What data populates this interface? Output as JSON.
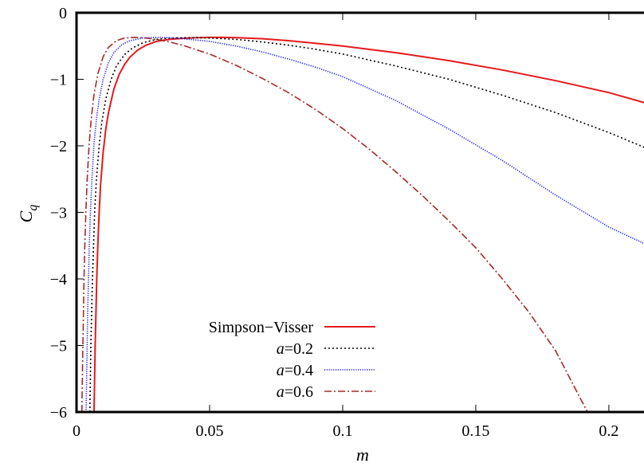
{
  "chart_data": {
    "type": "line",
    "title": "",
    "xlabel": "m",
    "ylabel": "C",
    "ylabel_sub": "q",
    "xlim": [
      0,
      0.215
    ],
    "ylim": [
      -6,
      0
    ],
    "xticks": [
      {
        "value": 0,
        "label": "0"
      },
      {
        "value": 0.05,
        "label": "0.05"
      },
      {
        "value": 0.1,
        "label": "0.1"
      },
      {
        "value": 0.15,
        "label": "0.15"
      },
      {
        "value": 0.2,
        "label": "0.2"
      }
    ],
    "yticks": [
      {
        "value": 0,
        "label": "0"
      },
      {
        "value": -1,
        "label": "−1"
      },
      {
        "value": -2,
        "label": "−2"
      },
      {
        "value": -3,
        "label": "−3"
      },
      {
        "value": -4,
        "label": "−4"
      },
      {
        "value": -5,
        "label": "−5"
      },
      {
        "value": -6,
        "label": "−6"
      }
    ],
    "grid": false,
    "legend": "bottom-left",
    "series": [
      {
        "name": "Simpson−Visser",
        "legend_prefix": "",
        "legend_value": "Simpson−Visser",
        "color": "#e41a1c",
        "dash": "solid",
        "x": [
          0.0066,
          0.0068,
          0.007,
          0.0073,
          0.0076,
          0.008,
          0.0085,
          0.009,
          0.01,
          0.011,
          0.012,
          0.014,
          0.016,
          0.018,
          0.02,
          0.023,
          0.026,
          0.03,
          0.035,
          0.04,
          0.045,
          0.05,
          0.055,
          0.06,
          0.07,
          0.08,
          0.09,
          0.1,
          0.12,
          0.14,
          0.16,
          0.18,
          0.2,
          0.215
        ],
        "y": [
          -6.0,
          -5.5,
          -5.0,
          -4.5,
          -4.0,
          -3.5,
          -3.0,
          -2.6,
          -2.1,
          -1.75,
          -1.5,
          -1.15,
          -0.93,
          -0.78,
          -0.67,
          -0.56,
          -0.49,
          -0.43,
          -0.4,
          -0.385,
          -0.375,
          -0.37,
          -0.37,
          -0.375,
          -0.39,
          -0.42,
          -0.46,
          -0.5,
          -0.6,
          -0.72,
          -0.86,
          -1.02,
          -1.2,
          -1.37
        ]
      },
      {
        "name": "a=0.2",
        "legend_prefix": "a",
        "legend_value": "=0.2",
        "color": "#000000",
        "dash": "dotted",
        "x": [
          0.005,
          0.0052,
          0.0054,
          0.0057,
          0.006,
          0.0064,
          0.0068,
          0.0075,
          0.0085,
          0.0095,
          0.011,
          0.013,
          0.015,
          0.018,
          0.021,
          0.025,
          0.03,
          0.035,
          0.04,
          0.045,
          0.05,
          0.06,
          0.07,
          0.08,
          0.09,
          0.1,
          0.12,
          0.14,
          0.16,
          0.18,
          0.2,
          0.215
        ],
        "y": [
          -6.0,
          -5.5,
          -5.0,
          -4.5,
          -4.0,
          -3.5,
          -3.0,
          -2.5,
          -2.0,
          -1.65,
          -1.3,
          -1.0,
          -0.8,
          -0.63,
          -0.53,
          -0.45,
          -0.4,
          -0.38,
          -0.375,
          -0.375,
          -0.38,
          -0.4,
          -0.44,
          -0.49,
          -0.55,
          -0.62,
          -0.8,
          -1.0,
          -1.24,
          -1.5,
          -1.8,
          -2.05
        ]
      },
      {
        "name": "a=0.4",
        "legend_prefix": "a",
        "legend_value": "=0.4",
        "color": "#1a1aff",
        "dash": "fine-dotted",
        "x": [
          0.0036,
          0.0038,
          0.004,
          0.0042,
          0.0045,
          0.0048,
          0.0052,
          0.0058,
          0.0065,
          0.0075,
          0.0085,
          0.01,
          0.012,
          0.014,
          0.017,
          0.02,
          0.025,
          0.03,
          0.035,
          0.04,
          0.05,
          0.06,
          0.07,
          0.08,
          0.09,
          0.1,
          0.12,
          0.14,
          0.16,
          0.18,
          0.2,
          0.215
        ],
        "y": [
          -6.0,
          -5.5,
          -5.0,
          -4.5,
          -4.0,
          -3.5,
          -3.0,
          -2.5,
          -2.0,
          -1.6,
          -1.3,
          -1.0,
          -0.75,
          -0.6,
          -0.48,
          -0.42,
          -0.38,
          -0.37,
          -0.375,
          -0.39,
          -0.43,
          -0.5,
          -0.59,
          -0.7,
          -0.82,
          -0.96,
          -1.32,
          -1.75,
          -2.22,
          -2.74,
          -3.22,
          -3.5
        ]
      },
      {
        "name": "a=0.6",
        "legend_prefix": "a",
        "legend_value": "=0.6",
        "color": "#a52a2a",
        "dash": "dash-dot",
        "x": [
          0.002,
          0.0022,
          0.0024,
          0.0026,
          0.0028,
          0.0031,
          0.0035,
          0.004,
          0.0047,
          0.0055,
          0.0065,
          0.008,
          0.01,
          0.012,
          0.015,
          0.018,
          0.022,
          0.026,
          0.03,
          0.035,
          0.04,
          0.05,
          0.06,
          0.07,
          0.08,
          0.09,
          0.1,
          0.11,
          0.12,
          0.13,
          0.14,
          0.15,
          0.16,
          0.17,
          0.18,
          0.19,
          0.192
        ],
        "y": [
          -6.0,
          -5.5,
          -5.0,
          -4.5,
          -4.0,
          -3.5,
          -3.0,
          -2.5,
          -2.0,
          -1.6,
          -1.25,
          -0.92,
          -0.66,
          -0.52,
          -0.42,
          -0.38,
          -0.37,
          -0.38,
          -0.4,
          -0.44,
          -0.49,
          -0.62,
          -0.79,
          -0.99,
          -1.21,
          -1.46,
          -1.74,
          -2.05,
          -2.39,
          -2.75,
          -3.13,
          -3.53,
          -4.0,
          -4.5,
          -5.08,
          -5.85,
          -6.0
        ]
      }
    ]
  }
}
